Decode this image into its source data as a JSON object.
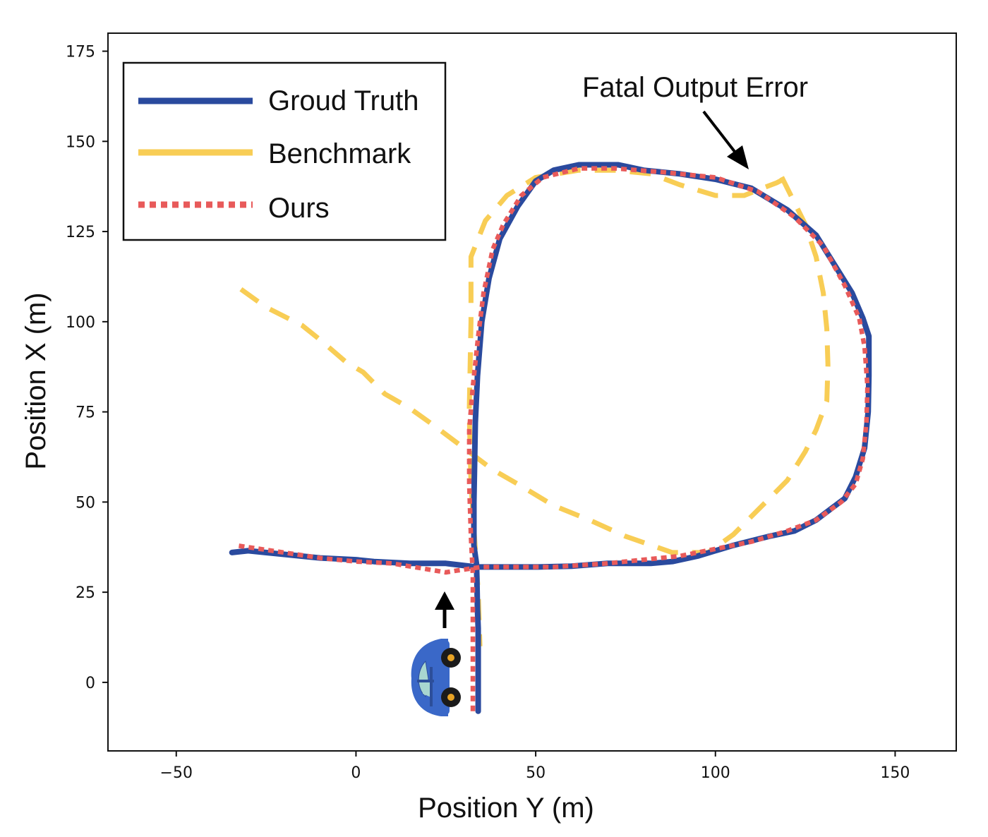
{
  "chart_data": {
    "type": "line",
    "title": "",
    "xlabel": "Position Y (m)",
    "ylabel": "Position X (m)",
    "xlim": [
      -69,
      167
    ],
    "ylim": [
      -19,
      180
    ],
    "xticks": [
      -50,
      0,
      50,
      100,
      150
    ],
    "yticks": [
      0,
      25,
      50,
      75,
      100,
      125,
      150,
      175
    ],
    "xtick_labels": [
      "−50",
      "0",
      "50",
      "100",
      "150"
    ],
    "ytick_labels": [
      "0",
      "25",
      "50",
      "75",
      "100",
      "125",
      "150",
      "175"
    ],
    "grid": false,
    "legend_position": "top-left",
    "series": [
      {
        "name": "Groud Truth",
        "color": "#2a4a9e",
        "style": "solid",
        "x": [
          34,
          34,
          34,
          33.8,
          33.7,
          33.6,
          33.5,
          32.8,
          32.8,
          33.2,
          33.8,
          35,
          37,
          40,
          45,
          50,
          55,
          62,
          73,
          80,
          90,
          100,
          110,
          120,
          128,
          133,
          138,
          141,
          142.7,
          142.7,
          142.5,
          141.5,
          139,
          136,
          132,
          128,
          122,
          115,
          105,
          95,
          88,
          82,
          70,
          60,
          50,
          40,
          33.5,
          25,
          15,
          5,
          0,
          -10,
          -20,
          -30,
          -34.5
        ],
        "y": [
          -8,
          5,
          15,
          20,
          25,
          30,
          33,
          38,
          50,
          72,
          85,
          100,
          112,
          123,
          132,
          139,
          142,
          143.5,
          143.5,
          142,
          141,
          139.5,
          137,
          131,
          124,
          116,
          108,
          101,
          96,
          85,
          75,
          65,
          57,
          51,
          48,
          45,
          42,
          40.5,
          38,
          35,
          33.5,
          33,
          33,
          32.2,
          32,
          32,
          32,
          33,
          33,
          33.5,
          34,
          34.5,
          35.5,
          36.5,
          36
        ]
      },
      {
        "name": "Benchmark",
        "color": "#f8cd55",
        "style": "dashed",
        "x": [
          -32,
          -25,
          -15,
          -10,
          -3,
          2,
          8,
          15,
          22,
          30,
          38,
          45,
          55,
          65,
          75,
          88,
          98,
          105,
          110,
          115,
          120,
          125,
          128,
          131,
          131.3,
          131,
          130,
          128,
          125,
          122,
          118,
          120,
          117,
          113,
          108,
          100,
          90,
          82,
          72,
          62,
          50,
          42,
          36,
          32,
          32,
          31.5,
          32,
          33,
          34,
          34.5
        ],
        "y": [
          109,
          104,
          99,
          95,
          89,
          86,
          80,
          76,
          71,
          65,
          59,
          55,
          49,
          45,
          40.5,
          36,
          36,
          41,
          46,
          51,
          56,
          64,
          70,
          78,
          88,
          98,
          108,
          118,
          127,
          133,
          141,
          140,
          138.5,
          137,
          135,
          135,
          138,
          141,
          142,
          142,
          140,
          135,
          128,
          118,
          100,
          75,
          55,
          40,
          25,
          10
        ]
      },
      {
        "name": "Ours",
        "color": "#e85a5a",
        "style": "dotted",
        "x": [
          32.5,
          32.5,
          32.5,
          32.5,
          32,
          31.5,
          31.5,
          32.5,
          34,
          35.5,
          38,
          41,
          46,
          52,
          62,
          72,
          85,
          100,
          112,
          122,
          130,
          136,
          140,
          141.5,
          142.3,
          142,
          141,
          139,
          135,
          128,
          120,
          110,
          100,
          90,
          80,
          70,
          55,
          45,
          35,
          28,
          25,
          10,
          0,
          -10,
          -20,
          -33.5
        ],
        "y": [
          -8,
          8,
          20,
          30,
          40,
          55,
          70,
          82,
          96,
          108,
          120,
          127,
          135,
          140,
          142.5,
          142.5,
          141.5,
          140,
          136,
          129,
          121,
          110,
          101,
          93,
          82,
          72,
          62,
          55,
          50,
          45,
          42,
          39,
          37,
          35,
          34,
          33,
          32,
          32,
          32,
          31,
          30.5,
          33,
          33.5,
          34.5,
          36,
          38
        ]
      }
    ],
    "annotations": [
      {
        "text": "Fatal Output Error",
        "target_x": 109,
        "target_y": 143
      }
    ]
  },
  "icons": {
    "car": "car-icon",
    "direction_arrow": "up-arrow-icon"
  }
}
